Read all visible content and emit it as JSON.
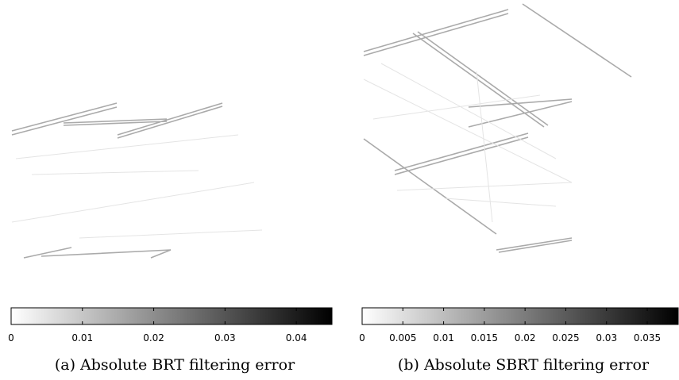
{
  "chart_data": [
    {
      "type": "colorbar",
      "caption": "(a) Absolute BRT filtering error",
      "xlim": [
        0,
        0.045
      ],
      "xticks": [
        0,
        0.01,
        0.02,
        0.03,
        0.04
      ],
      "colors": [
        "#ffffff",
        "#000000"
      ]
    },
    {
      "type": "colorbar",
      "caption": "(b) Absolute SBRT filtering error",
      "xlim": [
        0,
        0.0388
      ],
      "xticks": [
        0,
        0.005,
        0.01,
        0.015,
        0.02,
        0.025,
        0.03,
        0.035
      ],
      "colors": [
        "#ffffff",
        "#000000"
      ]
    }
  ]
}
